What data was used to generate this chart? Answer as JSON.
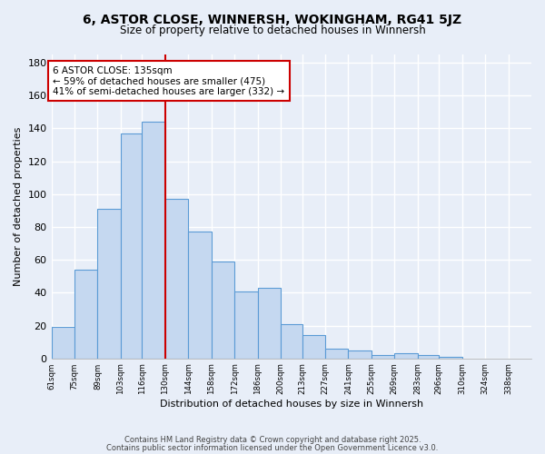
{
  "title": "6, ASTOR CLOSE, WINNERSH, WOKINGHAM, RG41 5JZ",
  "subtitle": "Size of property relative to detached houses in Winnersh",
  "bar_values": [
    19,
    54,
    91,
    137,
    144,
    97,
    77,
    59,
    41,
    43,
    21,
    14,
    6,
    5,
    2,
    3,
    2,
    1
  ],
  "bin_edges": [
    61,
    75,
    89,
    103,
    116,
    130,
    144,
    158,
    172,
    186,
    200,
    213,
    227,
    241,
    255,
    269,
    283,
    296,
    310,
    324,
    338,
    352
  ],
  "bin_labels": [
    "61sqm",
    "75sqm",
    "89sqm",
    "103sqm",
    "116sqm",
    "130sqm",
    "144sqm",
    "158sqm",
    "172sqm",
    "186sqm",
    "200sqm",
    "213sqm",
    "227sqm",
    "241sqm",
    "255sqm",
    "269sqm",
    "283sqm",
    "296sqm",
    "310sqm",
    "324sqm",
    "338sqm"
  ],
  "bar_color": "#c5d8f0",
  "bar_edge_color": "#5b9bd5",
  "vline_x": 130,
  "vline_color": "#cc0000",
  "xlabel": "Distribution of detached houses by size in Winnersh",
  "ylabel": "Number of detached properties",
  "ylim": [
    0,
    185
  ],
  "yticks": [
    0,
    20,
    40,
    60,
    80,
    100,
    120,
    140,
    160,
    180
  ],
  "annotation_title": "6 ASTOR CLOSE: 135sqm",
  "annotation_line1": "← 59% of detached houses are smaller (475)",
  "annotation_line2": "41% of semi-detached houses are larger (332) →",
  "annotation_box_color": "#ffffff",
  "annotation_box_edge": "#cc0000",
  "footer1": "Contains HM Land Registry data © Crown copyright and database right 2025.",
  "footer2": "Contains public sector information licensed under the Open Government Licence v3.0.",
  "bg_color": "#e8eef8",
  "grid_color": "#ffffff"
}
